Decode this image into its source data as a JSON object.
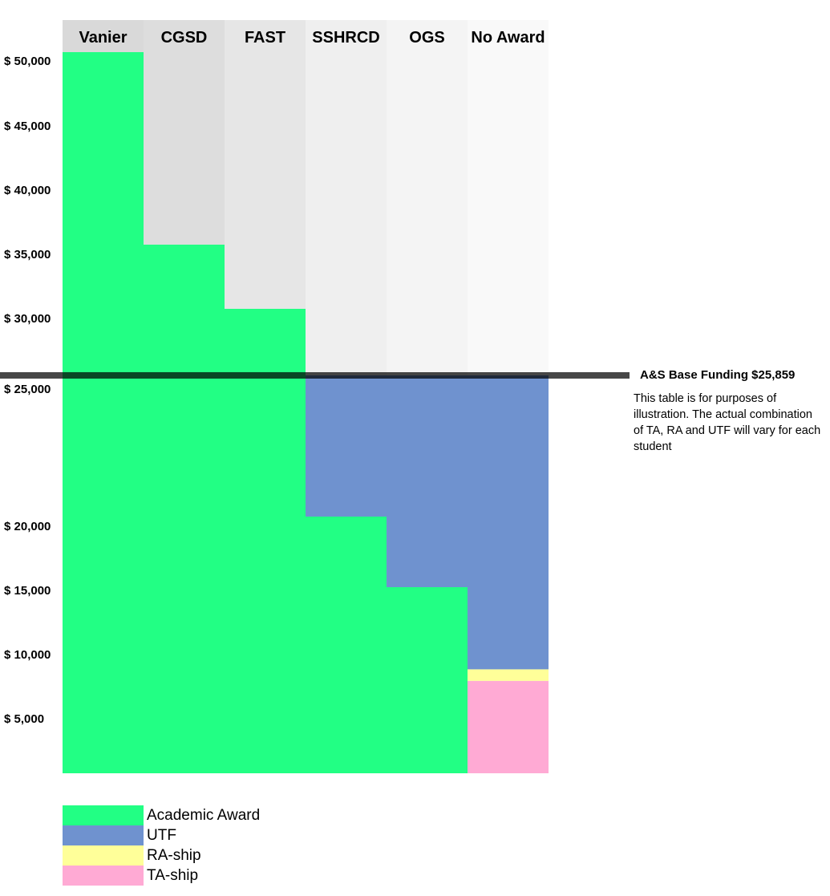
{
  "chart_data": {
    "type": "bar",
    "stacked": true,
    "categories": [
      "Vanier",
      "CGSD",
      "FAST",
      "SSHRCD",
      "OGS",
      "No Award"
    ],
    "series": [
      {
        "name": "TA-ship",
        "color": "#ffaad4",
        "values": [
          0,
          0,
          0,
          0,
          0,
          8000
        ]
      },
      {
        "name": "RA-ship",
        "color": "#ffff99",
        "values": [
          0,
          0,
          0,
          0,
          0,
          1000
        ]
      },
      {
        "name": "Academic Award",
        "color": "#22ff84",
        "values": [
          50000,
          35000,
          30000,
          20000,
          15000,
          0
        ]
      },
      {
        "name": "UTF",
        "color": "#6f92cf",
        "values": [
          0,
          0,
          0,
          5859,
          10859,
          16859
        ]
      }
    ],
    "column_backgrounds": [
      "#d9d9d9",
      "#dddddd",
      "#e6e6e6",
      "#efefef",
      "#f4f4f4",
      "#f9f9f9"
    ],
    "y_ticks": [
      "$ 50,000",
      "$ 45,000",
      "$ 40,000",
      "$ 35,000",
      "$ 30,000",
      "$ 25,000",
      "$ 20,000",
      "$ 15,000",
      "$ 10,000",
      "$   5,000"
    ],
    "baseline": {
      "label": "A&S Base Funding $25,859",
      "value": 25859
    },
    "note": "This table is for purposes of illustration. The actual combination of TA, RA and UTF will vary for each student"
  }
}
